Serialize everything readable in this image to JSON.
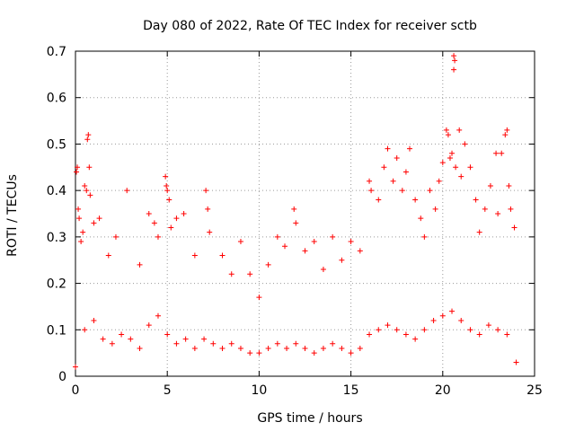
{
  "chart_data": {
    "type": "scatter",
    "title": "Day 080 of 2022, Rate Of TEC Index for receiver sctb",
    "xlabel": "GPS time / hours",
    "ylabel": "ROTI / TECUs",
    "xlim": [
      0,
      25
    ],
    "ylim": [
      0,
      0.7
    ],
    "xticks": [
      0,
      5,
      10,
      15,
      20,
      25
    ],
    "yticks": [
      0,
      0.1,
      0.2,
      0.3,
      0.4,
      0.5,
      0.6,
      0.7
    ],
    "grid": true,
    "marker": "+",
    "marker_color": "#ff0000",
    "time_coverage_hours": [
      0,
      24
    ],
    "series": [
      {
        "points": [
          [
            0.0,
            0.02
          ],
          [
            0.05,
            0.44
          ],
          [
            0.1,
            0.45
          ],
          [
            0.15,
            0.36
          ],
          [
            0.2,
            0.34
          ],
          [
            0.3,
            0.29
          ],
          [
            0.4,
            0.31
          ],
          [
            0.5,
            0.41
          ],
          [
            0.6,
            0.4
          ],
          [
            0.65,
            0.51
          ],
          [
            0.7,
            0.52
          ],
          [
            0.75,
            0.45
          ],
          [
            0.8,
            0.39
          ],
          [
            1.0,
            0.33
          ],
          [
            1.3,
            0.34
          ],
          [
            1.8,
            0.26
          ],
          [
            2.2,
            0.3
          ],
          [
            2.8,
            0.4
          ],
          [
            3.5,
            0.24
          ],
          [
            4.0,
            0.35
          ],
          [
            4.3,
            0.33
          ],
          [
            4.5,
            0.3
          ],
          [
            4.9,
            0.43
          ],
          [
            4.95,
            0.41
          ],
          [
            5.0,
            0.4
          ],
          [
            5.1,
            0.38
          ],
          [
            5.2,
            0.32
          ],
          [
            5.5,
            0.34
          ],
          [
            5.9,
            0.35
          ],
          [
            6.5,
            0.26
          ],
          [
            7.1,
            0.4
          ],
          [
            7.2,
            0.36
          ],
          [
            7.3,
            0.31
          ],
          [
            8.0,
            0.26
          ],
          [
            8.5,
            0.22
          ],
          [
            9.0,
            0.29
          ],
          [
            9.5,
            0.22
          ],
          [
            10.0,
            0.17
          ],
          [
            10.5,
            0.24
          ],
          [
            11.0,
            0.3
          ],
          [
            11.4,
            0.28
          ],
          [
            11.9,
            0.36
          ],
          [
            12.0,
            0.33
          ],
          [
            12.5,
            0.27
          ],
          [
            13.0,
            0.29
          ],
          [
            13.5,
            0.23
          ],
          [
            14.0,
            0.3
          ],
          [
            14.5,
            0.25
          ],
          [
            15.0,
            0.29
          ],
          [
            15.5,
            0.27
          ],
          [
            16.0,
            0.42
          ],
          [
            16.1,
            0.4
          ],
          [
            16.5,
            0.38
          ],
          [
            16.8,
            0.45
          ],
          [
            17.0,
            0.49
          ],
          [
            17.3,
            0.42
          ],
          [
            17.5,
            0.47
          ],
          [
            17.8,
            0.4
          ],
          [
            18.0,
            0.44
          ],
          [
            18.2,
            0.49
          ],
          [
            18.5,
            0.38
          ],
          [
            18.8,
            0.34
          ],
          [
            19.0,
            0.3
          ],
          [
            19.3,
            0.4
          ],
          [
            19.6,
            0.36
          ],
          [
            19.8,
            0.42
          ],
          [
            20.0,
            0.46
          ],
          [
            20.2,
            0.53
          ],
          [
            20.3,
            0.52
          ],
          [
            20.4,
            0.47
          ],
          [
            20.5,
            0.48
          ],
          [
            20.6,
            0.69
          ],
          [
            20.65,
            0.68
          ],
          [
            20.6,
            0.66
          ],
          [
            20.7,
            0.45
          ],
          [
            20.9,
            0.53
          ],
          [
            21.0,
            0.43
          ],
          [
            21.2,
            0.5
          ],
          [
            21.5,
            0.45
          ],
          [
            21.8,
            0.38
          ],
          [
            22.0,
            0.31
          ],
          [
            22.3,
            0.36
          ],
          [
            22.6,
            0.41
          ],
          [
            22.9,
            0.48
          ],
          [
            23.0,
            0.35
          ],
          [
            23.2,
            0.48
          ],
          [
            23.4,
            0.52
          ],
          [
            23.5,
            0.53
          ],
          [
            23.6,
            0.41
          ],
          [
            23.7,
            0.36
          ],
          [
            23.9,
            0.32
          ],
          [
            0.5,
            0.1
          ],
          [
            1.0,
            0.12
          ],
          [
            1.5,
            0.08
          ],
          [
            2.0,
            0.07
          ],
          [
            2.5,
            0.09
          ],
          [
            3.0,
            0.08
          ],
          [
            3.5,
            0.06
          ],
          [
            4.0,
            0.11
          ],
          [
            4.5,
            0.13
          ],
          [
            5.0,
            0.09
          ],
          [
            5.5,
            0.07
          ],
          [
            6.0,
            0.08
          ],
          [
            6.5,
            0.06
          ],
          [
            7.0,
            0.08
          ],
          [
            7.5,
            0.07
          ],
          [
            8.0,
            0.06
          ],
          [
            8.5,
            0.07
          ],
          [
            9.0,
            0.06
          ],
          [
            9.5,
            0.05
          ],
          [
            10.0,
            0.05
          ],
          [
            10.5,
            0.06
          ],
          [
            11.0,
            0.07
          ],
          [
            11.5,
            0.06
          ],
          [
            12.0,
            0.07
          ],
          [
            12.5,
            0.06
          ],
          [
            13.0,
            0.05
          ],
          [
            13.5,
            0.06
          ],
          [
            14.0,
            0.07
          ],
          [
            14.5,
            0.06
          ],
          [
            15.0,
            0.05
          ],
          [
            15.5,
            0.06
          ],
          [
            16.0,
            0.09
          ],
          [
            16.5,
            0.1
          ],
          [
            17.0,
            0.11
          ],
          [
            17.5,
            0.1
          ],
          [
            18.0,
            0.09
          ],
          [
            18.5,
            0.08
          ],
          [
            19.0,
            0.1
          ],
          [
            19.5,
            0.12
          ],
          [
            20.0,
            0.13
          ],
          [
            20.5,
            0.14
          ],
          [
            21.0,
            0.12
          ],
          [
            21.5,
            0.1
          ],
          [
            22.0,
            0.09
          ],
          [
            22.5,
            0.11
          ],
          [
            23.0,
            0.1
          ],
          [
            23.5,
            0.09
          ],
          [
            24.0,
            0.03
          ]
        ]
      }
    ]
  }
}
